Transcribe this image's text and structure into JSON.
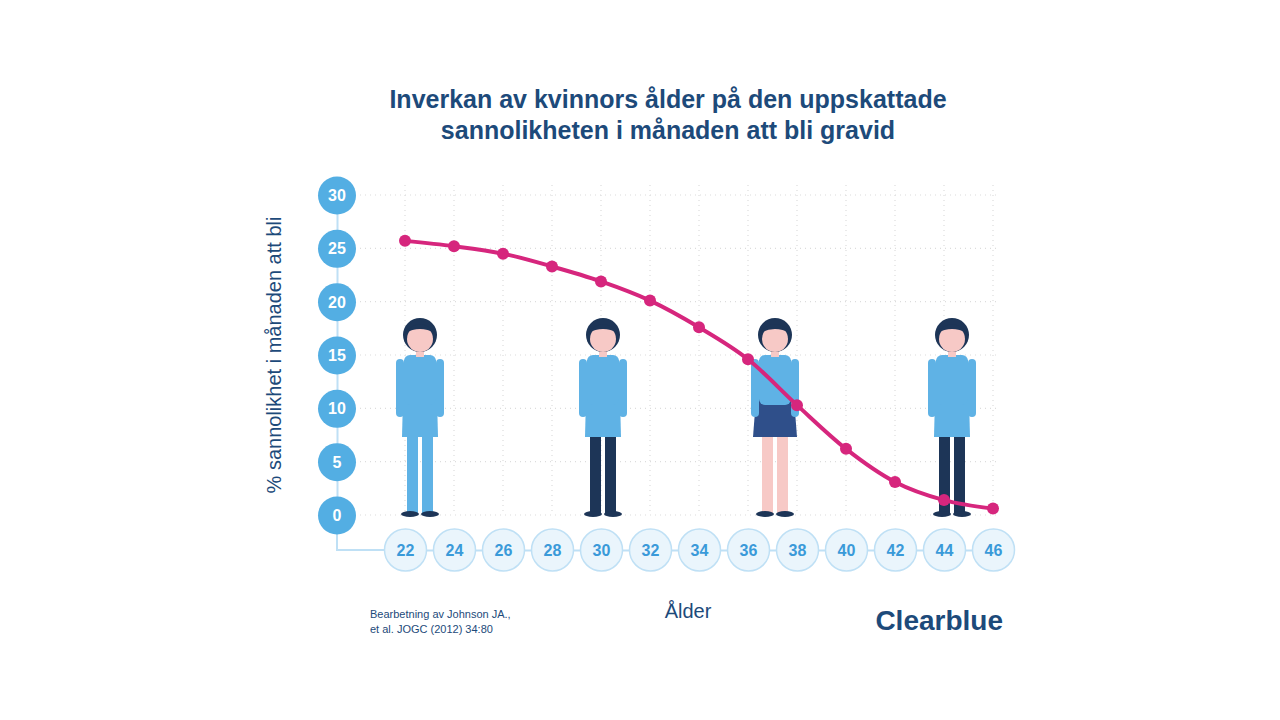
{
  "chart_data": {
    "type": "line",
    "title": "Inverkan av kvinnors ålder på den uppskattade sannolikheten i månaden att bli gravid",
    "x_label": "Ålder",
    "y_label": "% sannolikhet i månaden att bli",
    "x": [
      22,
      24,
      26,
      28,
      30,
      32,
      34,
      36,
      38,
      40,
      42,
      44,
      46
    ],
    "values": [
      25.7,
      25.2,
      24.5,
      23.3,
      21.9,
      20.1,
      17.6,
      14.6,
      10.3,
      6.2,
      3.1,
      1.4,
      0.6
    ],
    "color": "#d6267d",
    "marker": "circle",
    "xlim": [
      22,
      46
    ],
    "xticks": [
      22,
      24,
      26,
      28,
      30,
      32,
      34,
      36,
      38,
      40,
      42,
      44,
      46
    ],
    "ylim": [
      0,
      30
    ],
    "yticks": [
      0,
      5,
      10,
      15,
      20,
      25,
      30
    ],
    "grid": true,
    "annotations": [
      "Bearbetning av Johnson JA.,",
      "et al. JOGC (2012) 34:80",
      "Clearblue"
    ]
  }
}
